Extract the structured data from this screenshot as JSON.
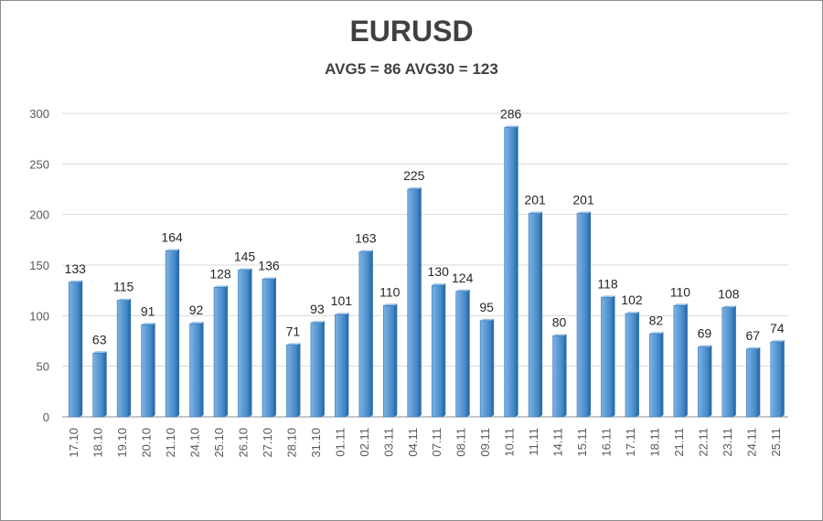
{
  "chart_data": {
    "type": "bar",
    "title": "EURUSD",
    "subtitle": "AVG5 = 86 AVG30 = 123",
    "xlabel": "",
    "ylabel": "",
    "ylim": [
      0,
      300
    ],
    "yticks": [
      0,
      50,
      100,
      150,
      200,
      250,
      300
    ],
    "grid": true,
    "legend": "none",
    "bar_color": "#5b9bd5",
    "bar_edge_color": "#2e75b6",
    "categories": [
      "17.10",
      "18.10",
      "19.10",
      "20.10",
      "21.10",
      "24.10",
      "25.10",
      "26.10",
      "27.10",
      "28.10",
      "31.10",
      "01.11",
      "02.11",
      "03.11",
      "04.11",
      "07.11",
      "08.11",
      "09.11",
      "10.11",
      "11.11",
      "14.11",
      "15.11",
      "16.11",
      "17.11",
      "18.11",
      "21.11",
      "22.11",
      "23.11",
      "24.11",
      "25.11"
    ],
    "values": [
      133,
      63,
      115,
      91,
      164,
      92,
      128,
      145,
      136,
      71,
      93,
      101,
      163,
      110,
      225,
      130,
      124,
      95,
      286,
      201,
      80,
      201,
      118,
      102,
      82,
      110,
      69,
      108,
      67,
      74
    ]
  }
}
